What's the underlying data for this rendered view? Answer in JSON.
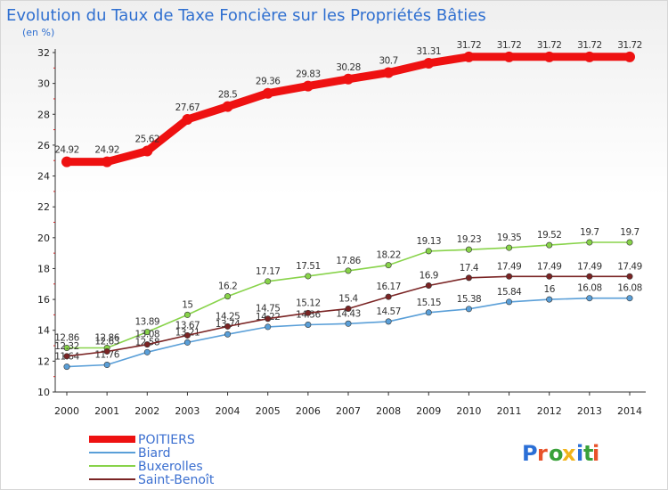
{
  "chart_data": {
    "type": "line",
    "title": "Evolution du Taux de Taxe Foncière sur les Propriétés Bâties",
    "subtitle": "(en %)",
    "x": [
      "2000",
      "2001",
      "2002",
      "2003",
      "2004",
      "2005",
      "2006",
      "2007",
      "2008",
      "2009",
      "2010",
      "2011",
      "2012",
      "2013",
      "2014"
    ],
    "ylim": [
      10,
      32
    ],
    "yticks": [
      10,
      12,
      14,
      16,
      18,
      20,
      22,
      24,
      26,
      28,
      30,
      32
    ],
    "grid": false,
    "legend_position": "bottom-left",
    "series": [
      {
        "name": "POITIERS",
        "color": "#ee1111",
        "emphasis": true,
        "values": [
          24.92,
          24.92,
          25.62,
          27.67,
          28.5,
          29.36,
          29.83,
          30.28,
          30.7,
          31.31,
          31.72,
          31.72,
          31.72,
          31.72,
          31.72
        ],
        "labels": [
          "24.92",
          "24.92",
          "25.62",
          "27.67",
          "28.5",
          "29.36",
          "29.83",
          "30.28",
          "30.7",
          "31.31",
          "31.72",
          "31.72",
          "31.72",
          "31.72",
          "31.72"
        ]
      },
      {
        "name": "Biard",
        "color": "#5a9fd8",
        "values": [
          11.64,
          11.76,
          12.58,
          13.21,
          13.74,
          14.22,
          14.36,
          14.43,
          14.57,
          15.15,
          15.38,
          15.84,
          16.0,
          16.08,
          16.08
        ],
        "labels": [
          "11.64",
          "11.76",
          "12.58",
          "13.21",
          "13.74",
          "14.22",
          "14.36",
          "14.43",
          "14.57",
          "15.15",
          "15.38",
          "15.84",
          "16",
          "16.08",
          "16.08"
        ]
      },
      {
        "name": "Buxerolles",
        "color": "#88d34a",
        "values": [
          12.86,
          12.86,
          13.89,
          15.0,
          16.2,
          17.17,
          17.51,
          17.86,
          18.22,
          19.13,
          19.23,
          19.35,
          19.52,
          19.7,
          19.7
        ],
        "labels": [
          "12.86",
          "12.86",
          "13.89",
          "15",
          "16.2",
          "17.17",
          "17.51",
          "17.86",
          "18.22",
          "19.13",
          "19.23",
          "19.35",
          "19.52",
          "19.7",
          "19.7"
        ]
      },
      {
        "name": "Saint-Benoît",
        "color": "#7a2424",
        "values": [
          12.32,
          12.63,
          13.08,
          13.67,
          14.25,
          14.75,
          15.12,
          15.4,
          16.17,
          16.9,
          17.4,
          17.49,
          17.49,
          17.49,
          17.49
        ],
        "labels": [
          "12.32",
          "12.63",
          "13.08",
          "13.67",
          "14.25",
          "14.75",
          "15.12",
          "15.4",
          "16.17",
          "16.9",
          "17.4",
          "17.49",
          "17.49",
          "17.49",
          "17.49"
        ]
      }
    ]
  },
  "brand": {
    "logo_text": "Proxiti",
    "letter_colors": [
      "#2b6fd6",
      "#e8522a",
      "#3aa13a",
      "#f0b41c",
      "#2b6fd6",
      "#3aa13a",
      "#e8522a"
    ]
  }
}
